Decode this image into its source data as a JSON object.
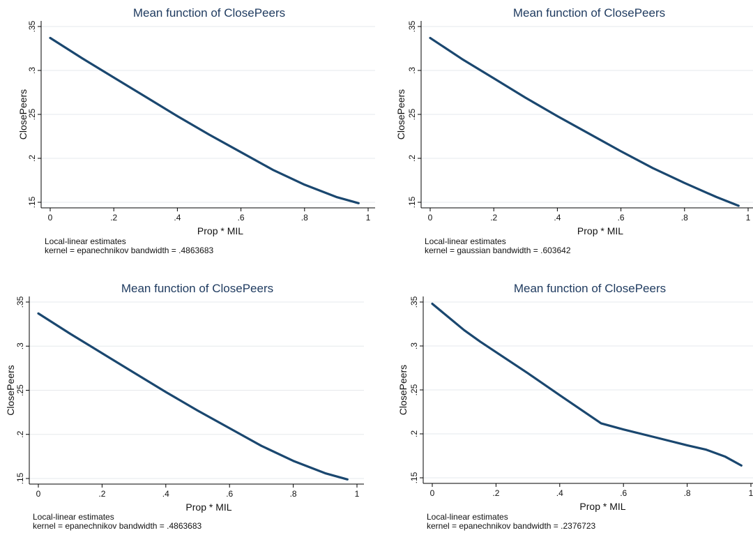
{
  "chart_data": [
    {
      "type": "line",
      "title": "Mean function of ClosePeers",
      "xlabel": "Prop * MIL",
      "ylabel": "ClosePeers",
      "x_ticks": [
        "0",
        ".2",
        ".4",
        ".6",
        ".8",
        "1"
      ],
      "y_ticks": [
        ".15",
        ".2",
        ".25",
        ".3",
        ".35"
      ],
      "xlim": [
        0,
        1
      ],
      "ylim": [
        0.15,
        0.35
      ],
      "grid": true,
      "x": [
        0,
        0.1,
        0.2,
        0.3,
        0.4,
        0.5,
        0.6,
        0.7,
        0.8,
        0.9,
        0.97
      ],
      "y": [
        0.337,
        0.314,
        0.292,
        0.27,
        0.248,
        0.227,
        0.207,
        0.187,
        0.17,
        0.156,
        0.149
      ],
      "notes": [
        "Local-linear estimates",
        "kernel = epanechnikov bandwidth = .4863683"
      ],
      "color": "#1a476f"
    },
    {
      "type": "line",
      "title": "Mean function of ClosePeers",
      "xlabel": "Prop * MIL",
      "ylabel": "ClosePeers",
      "x_ticks": [
        "0",
        ".2",
        ".4",
        ".6",
        ".8",
        "1"
      ],
      "y_ticks": [
        ".15",
        ".2",
        ".25",
        ".3",
        ".35"
      ],
      "xlim": [
        0,
        1
      ],
      "ylim": [
        0.15,
        0.35
      ],
      "grid": true,
      "x": [
        0,
        0.1,
        0.2,
        0.3,
        0.4,
        0.5,
        0.6,
        0.7,
        0.8,
        0.9,
        0.97
      ],
      "y": [
        0.337,
        0.313,
        0.291,
        0.269,
        0.248,
        0.228,
        0.208,
        0.189,
        0.172,
        0.156,
        0.146
      ],
      "notes": [
        "Local-linear estimates",
        "kernel = gaussian bandwidth = .603642"
      ],
      "color": "#1a476f"
    },
    {
      "type": "line",
      "title": "Mean function of ClosePeers",
      "xlabel": "Prop * MIL",
      "ylabel": "ClosePeers",
      "x_ticks": [
        "0",
        ".2",
        ".4",
        ".6",
        ".8",
        "1"
      ],
      "y_ticks": [
        ".15",
        ".2",
        ".25",
        ".3",
        ".35"
      ],
      "xlim": [
        0,
        1
      ],
      "ylim": [
        0.15,
        0.35
      ],
      "grid": true,
      "x": [
        0,
        0.1,
        0.2,
        0.3,
        0.4,
        0.5,
        0.6,
        0.7,
        0.8,
        0.9,
        0.97
      ],
      "y": [
        0.337,
        0.314,
        0.292,
        0.27,
        0.248,
        0.227,
        0.207,
        0.187,
        0.17,
        0.156,
        0.149
      ],
      "notes": [
        "Local-linear estimates",
        "kernel = epanechnikov bandwidth = .4863683"
      ],
      "color": "#1a476f"
    },
    {
      "type": "line",
      "title": "Mean function of ClosePeers",
      "xlabel": "Prop * MIL",
      "ylabel": "ClosePeers",
      "x_ticks": [
        "0",
        ".2",
        ".4",
        ".6",
        ".8",
        "1"
      ],
      "y_ticks": [
        ".15",
        ".2",
        ".25",
        ".3",
        ".35"
      ],
      "xlim": [
        0,
        1
      ],
      "ylim": [
        0.15,
        0.35
      ],
      "grid": true,
      "x": [
        0,
        0.05,
        0.1,
        0.15,
        0.2,
        0.3,
        0.4,
        0.53,
        0.6,
        0.7,
        0.8,
        0.86,
        0.92,
        0.97
      ],
      "y": [
        0.348,
        0.333,
        0.318,
        0.305,
        0.293,
        0.269,
        0.244,
        0.212,
        0.205,
        0.196,
        0.187,
        0.182,
        0.174,
        0.164
      ],
      "notes": [
        "Local-linear estimates",
        "kernel = epanechnikov bandwidth = .2376723"
      ],
      "color": "#1a476f"
    }
  ]
}
